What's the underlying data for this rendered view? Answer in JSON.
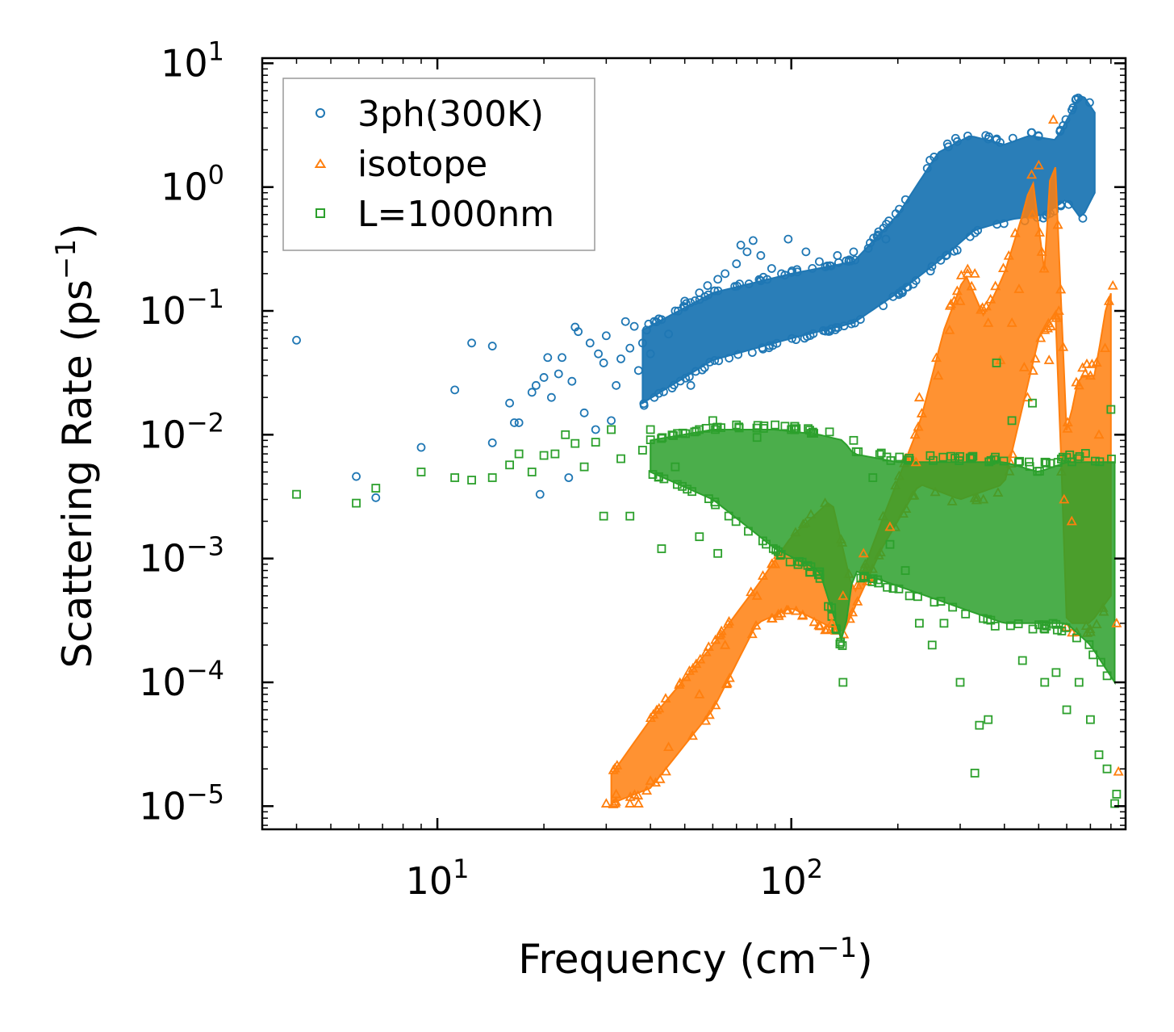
{
  "chart_data": {
    "type": "scatter",
    "title": "",
    "xlabel": "Frequency",
    "xlabel_unit": "(cm",
    "xlabel_unit_exp": "−1",
    "xlabel_close": ")",
    "ylabel": "Scattering Rate",
    "ylabel_unit": "(ps",
    "ylabel_unit_exp": "−1",
    "ylabel_close": ")",
    "xscale": "log",
    "yscale": "log",
    "xlim": [
      3.2,
      880
    ],
    "ylim": [
      6.5e-06,
      11
    ],
    "x_ticks": [
      {
        "value": 10,
        "base": "10",
        "exp": "1"
      },
      {
        "value": 100,
        "base": "10",
        "exp": "2"
      }
    ],
    "y_ticks": [
      {
        "value": 10,
        "base": "10",
        "exp": "1"
      },
      {
        "value": 1,
        "base": "10",
        "exp": "0"
      },
      {
        "value": 0.1,
        "base": "10",
        "exp": "−1"
      },
      {
        "value": 0.01,
        "base": "10",
        "exp": "−2"
      },
      {
        "value": 0.001,
        "base": "10",
        "exp": "−3"
      },
      {
        "value": 0.0001,
        "base": "10",
        "exp": "−4"
      },
      {
        "value": 1e-05,
        "base": "10",
        "exp": "−5"
      }
    ],
    "legend_position": "top-left",
    "grid": false,
    "series": [
      {
        "name": "3ph(300K)",
        "marker": "circle",
        "color": "#1f77b4",
        "points": [
          [
            4.0,
            0.058
          ],
          [
            5.9,
            0.0046
          ],
          [
            6.7,
            0.0031
          ],
          [
            9.0,
            0.0079
          ],
          [
            11.2,
            0.023
          ],
          [
            12.5,
            0.055
          ],
          [
            14.3,
            0.052
          ],
          [
            14.3,
            0.0086
          ],
          [
            16.0,
            0.018
          ],
          [
            16.5,
            0.0125
          ],
          [
            17.0,
            0.0125
          ],
          [
            18.5,
            0.022
          ],
          [
            19.0,
            0.025
          ],
          [
            19.5,
            0.0033
          ],
          [
            20.0,
            0.029
          ],
          [
            20.5,
            0.042
          ],
          [
            21.0,
            0.02
          ],
          [
            22.0,
            0.031
          ],
          [
            22.5,
            0.042
          ],
          [
            23.5,
            0.0045
          ],
          [
            24.0,
            0.027
          ],
          [
            24.5,
            0.074
          ],
          [
            25.0,
            0.068
          ],
          [
            26.0,
            0.015
          ],
          [
            27.0,
            0.055
          ],
          [
            28.0,
            0.011
          ],
          [
            28.5,
            0.045
          ],
          [
            29.5,
            0.038
          ],
          [
            30.0,
            0.063
          ],
          [
            31.0,
            0.013
          ],
          [
            32.0,
            0.025
          ],
          [
            33.0,
            0.041
          ],
          [
            34.0,
            0.082
          ],
          [
            35.0,
            0.05
          ],
          [
            36.0,
            0.075
          ],
          [
            37.0,
            0.033
          ],
          [
            38.0,
            0.055
          ],
          [
            39.0,
            0.07
          ],
          [
            40.0,
            0.045
          ],
          [
            41.0,
            0.02
          ],
          [
            43.0,
            0.085
          ],
          [
            45.0,
            0.065
          ],
          [
            47.0,
            0.1
          ],
          [
            50.0,
            0.12
          ],
          [
            52.0,
            0.025
          ],
          [
            55.0,
            0.14
          ],
          [
            58.0,
            0.16
          ],
          [
            62.0,
            0.18
          ],
          [
            65.0,
            0.2
          ],
          [
            70.0,
            0.24
          ],
          [
            72.0,
            0.34
          ],
          [
            75.0,
            0.3
          ],
          [
            78.0,
            0.37
          ],
          [
            82.0,
            0.28
          ],
          [
            88.0,
            0.22
          ],
          [
            98.0,
            0.38
          ],
          [
            110.0,
            0.3
          ],
          [
            120.0,
            0.25
          ],
          [
            135.0,
            0.28
          ],
          [
            150.0,
            0.3
          ],
          [
            165.0,
            0.32
          ],
          [
            185.0,
            0.38
          ]
        ],
        "band": {
          "lower": [
            [
              38,
              0.018
            ],
            [
              60,
              0.04
            ],
            [
              100,
              0.06
            ],
            [
              150,
              0.08
            ],
            [
              200,
              0.14
            ],
            [
              260,
              0.25
            ],
            [
              330,
              0.45
            ],
            [
              420,
              0.55
            ],
            [
              520,
              0.6
            ],
            [
              600,
              0.8
            ],
            [
              660,
              0.55
            ],
            [
              720,
              0.9
            ]
          ],
          "upper": [
            [
              38,
              0.07
            ],
            [
              60,
              0.14
            ],
            [
              100,
              0.2
            ],
            [
              150,
              0.25
            ],
            [
              200,
              0.6
            ],
            [
              260,
              1.9
            ],
            [
              320,
              2.6
            ],
            [
              400,
              2.2
            ],
            [
              470,
              2.6
            ],
            [
              560,
              2.4
            ],
            [
              660,
              5.8
            ],
            [
              720,
              4.0
            ]
          ]
        }
      },
      {
        "name": "isotope",
        "marker": "triangle",
        "color": "#ff7f0e",
        "points": [
          [
            30,
            1.05e-05
          ],
          [
            32,
            1.25e-05
          ],
          [
            35,
            1.05e-05
          ],
          [
            37,
            1.05e-05
          ],
          [
            40,
            1.6e-05
          ],
          [
            45,
            3e-05
          ],
          [
            55,
            8e-05
          ],
          [
            65,
            0.0002
          ],
          [
            80,
            0.0005
          ],
          [
            90,
            0.0009
          ],
          [
            130,
            0.0003
          ],
          [
            140,
            0.0005
          ],
          [
            160,
            0.0011
          ],
          [
            190,
            0.0018
          ],
          [
            225,
            0.006
          ],
          [
            230,
            0.02
          ],
          [
            260,
            0.03
          ],
          [
            280,
            0.07
          ],
          [
            300,
            0.12
          ],
          [
            330,
            0.2
          ],
          [
            360,
            0.08
          ],
          [
            390,
            0.04
          ],
          [
            420,
            0.08
          ],
          [
            440,
            0.15
          ],
          [
            455,
            0.035
          ],
          [
            465,
            0.02
          ],
          [
            480,
            0.6
          ],
          [
            500,
            1.5
          ],
          [
            510,
            0.3
          ],
          [
            520,
            0.07
          ],
          [
            535,
            0.04
          ],
          [
            550,
            3.5
          ],
          [
            570,
            0.1
          ],
          [
            590,
            0.003
          ],
          [
            620,
            0.002
          ],
          [
            650,
            0.025
          ],
          [
            700,
            0.03
          ],
          [
            740,
            0.01
          ],
          [
            770,
            0.05
          ],
          [
            790,
            0.12
          ],
          [
            810,
            0.16
          ],
          [
            830,
            0.0003
          ],
          [
            840,
            1.9e-05
          ]
        ],
        "band": {
          "lower": [
            [
              31,
              1.05e-05
            ],
            [
              40,
              1.4e-05
            ],
            [
              60,
              6e-05
            ],
            [
              80,
              0.0003
            ],
            [
              100,
              0.0004
            ],
            [
              140,
              0.00025
            ],
            [
              180,
              0.0012
            ],
            [
              230,
              0.004
            ],
            [
              300,
              0.003
            ],
            [
              400,
              0.004
            ],
            [
              500,
              0.06
            ],
            [
              560,
              0.1
            ],
            [
              600,
              0.0003
            ],
            [
              700,
              0.0003
            ],
            [
              800,
              0.0005
            ]
          ],
          "upper": [
            [
              31,
              1.8e-05
            ],
            [
              40,
              5e-05
            ],
            [
              60,
              0.0002
            ],
            [
              80,
              0.0006
            ],
            [
              100,
              0.0015
            ],
            [
              130,
              0.003
            ],
            [
              150,
              0.0005
            ],
            [
              180,
              0.002
            ],
            [
              230,
              0.012
            ],
            [
              270,
              0.07
            ],
            [
              310,
              0.2
            ],
            [
              350,
              0.09
            ],
            [
              400,
              0.2
            ],
            [
              450,
              0.6
            ],
            [
              480,
              1.2
            ],
            [
              520,
              0.2
            ],
            [
              550,
              3.6
            ],
            [
              600,
              0.01
            ],
            [
              650,
              0.03
            ],
            [
              720,
              0.03
            ],
            [
              780,
              0.12
            ],
            [
              820,
              0.16
            ]
          ]
        }
      },
      {
        "name": "L=1000nm",
        "marker": "square",
        "color": "#2ca02c",
        "points": [
          [
            4.0,
            0.0033
          ],
          [
            5.9,
            0.0028
          ],
          [
            6.7,
            0.0037
          ],
          [
            9.0,
            0.005
          ],
          [
            11.2,
            0.0045
          ],
          [
            12.5,
            0.0043
          ],
          [
            14.3,
            0.0045
          ],
          [
            16.0,
            0.0057
          ],
          [
            17.0,
            0.007
          ],
          [
            18.5,
            0.005
          ],
          [
            20.0,
            0.0068
          ],
          [
            21.5,
            0.007
          ],
          [
            23.0,
            0.01
          ],
          [
            24.5,
            0.0085
          ],
          [
            26.0,
            0.0055
          ],
          [
            28.0,
            0.0087
          ],
          [
            29.5,
            0.0022
          ],
          [
            31.0,
            0.011
          ],
          [
            33.0,
            0.0064
          ],
          [
            35.0,
            0.0022
          ],
          [
            38.0,
            0.0075
          ],
          [
            40.0,
            0.011
          ],
          [
            43.0,
            0.0012
          ],
          [
            47.0,
            0.0055
          ],
          [
            55.0,
            0.0015
          ],
          [
            60.0,
            0.013
          ],
          [
            62.0,
            0.0011
          ],
          [
            70.0,
            0.012
          ],
          [
            80.0,
            0.0095
          ],
          [
            90.0,
            0.012
          ],
          [
            100.0,
            0.011
          ],
          [
            115.0,
            0.0105
          ],
          [
            130.0,
            0.0004
          ],
          [
            140.0,
            0.0001
          ],
          [
            150.0,
            0.009
          ],
          [
            170.0,
            0.0045
          ],
          [
            190.0,
            0.0013
          ],
          [
            210.0,
            0.0008
          ],
          [
            230.0,
            0.0003
          ],
          [
            250.0,
            0.0002
          ],
          [
            270.0,
            0.0003
          ],
          [
            300.0,
            0.0001
          ],
          [
            330.0,
            1.85e-05
          ],
          [
            340.0,
            4.5e-05
          ],
          [
            360.0,
            5e-05
          ],
          [
            380.0,
            0.038
          ],
          [
            420.0,
            0.013
          ],
          [
            450.0,
            0.00015
          ],
          [
            480.0,
            0.018
          ],
          [
            520.0,
            0.0001
          ],
          [
            560.0,
            0.00012
          ],
          [
            600.0,
            6e-05
          ],
          [
            650.0,
            0.0001
          ],
          [
            700.0,
            5e-05
          ],
          [
            740.0,
            2.6e-05
          ],
          [
            780.0,
            2e-05
          ],
          [
            800.0,
            0.016
          ],
          [
            820.0,
            1.05e-05
          ],
          [
            830.0,
            1.25e-05
          ]
        ],
        "band": {
          "lower": [
            [
              40,
              0.005
            ],
            [
              60,
              0.003
            ],
            [
              90,
              0.0012
            ],
            [
              120,
              0.0008
            ],
            [
              140,
              0.0002
            ],
            [
              150,
              0.0008
            ],
            [
              200,
              0.0006
            ],
            [
              300,
              0.0004
            ],
            [
              400,
              0.0003
            ],
            [
              500,
              0.0003
            ],
            [
              600,
              0.0003
            ],
            [
              700,
              0.0002
            ],
            [
              820,
              0.0001
            ]
          ],
          "upper": [
            [
              40,
              0.009
            ],
            [
              60,
              0.011
            ],
            [
              90,
              0.011
            ],
            [
              120,
              0.01
            ],
            [
              140,
              0.009
            ],
            [
              150,
              0.007
            ],
            [
              200,
              0.006
            ],
            [
              300,
              0.006
            ],
            [
              400,
              0.006
            ],
            [
              500,
              0.005
            ],
            [
              600,
              0.006
            ],
            [
              700,
              0.006
            ],
            [
              820,
              0.006
            ]
          ]
        }
      }
    ]
  }
}
